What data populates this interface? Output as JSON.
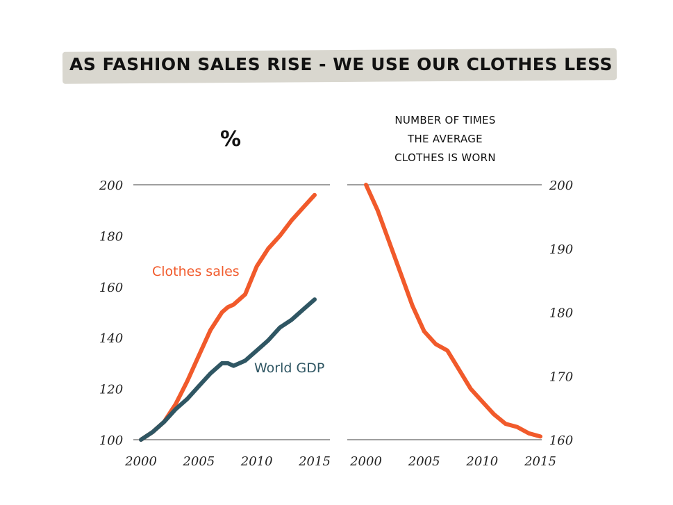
{
  "title": "AS FASHION SALES RISE - WE USE OUR CLOTHES LESS",
  "colors": {
    "clothes_sales": "#f15a2b",
    "world_gdp": "#2f5663",
    "title_band": "#d9d7cf",
    "grid": "#666666"
  },
  "chart_data": [
    {
      "type": "line",
      "unit_label": "%",
      "x_ticks": [
        "2000",
        "2005",
        "2010",
        "2015"
      ],
      "y_ticks": [
        "100",
        "120",
        "140",
        "160",
        "180",
        "200"
      ],
      "xlim": [
        2000,
        2015
      ],
      "ylim": [
        100,
        200
      ],
      "grid_lines": [
        200,
        100
      ],
      "series": [
        {
          "name": "Clothes sales",
          "color_key": "clothes_sales",
          "x": [
            2000,
            2001,
            2002,
            2003,
            2004,
            2005,
            2006,
            2007,
            2007.5,
            2008,
            2009,
            2010,
            2011,
            2012,
            2013,
            2014,
            2015
          ],
          "y": [
            100,
            103,
            107,
            114,
            123,
            133,
            143,
            150,
            152,
            153,
            157,
            168,
            175,
            180,
            186,
            191,
            196
          ]
        },
        {
          "name": "World GDP",
          "color_key": "world_gdp",
          "x": [
            2000,
            2001,
            2002,
            2003,
            2004,
            2005,
            2006,
            2007,
            2007.5,
            2008,
            2009,
            2010,
            2011,
            2012,
            2013,
            2014,
            2015
          ],
          "y": [
            100,
            103,
            107,
            112,
            116,
            121,
            126,
            130,
            130,
            129,
            131,
            135,
            139,
            144,
            147,
            151,
            155
          ]
        }
      ]
    },
    {
      "type": "line",
      "title_lines": [
        "NUMBER OF TIMES",
        "THE AVERAGE",
        "CLOTHES IS WORN"
      ],
      "x_ticks": [
        "2000",
        "2005",
        "2010",
        "2015"
      ],
      "y_ticks": [
        "160",
        "170",
        "180",
        "190",
        "200"
      ],
      "xlim": [
        2000,
        2015
      ],
      "ylim": [
        160,
        200
      ],
      "grid_lines": [
        200,
        160
      ],
      "series": [
        {
          "color_key": "clothes_sales",
          "x": [
            2000,
            2001,
            2002,
            2003,
            2004,
            2005,
            2006,
            2007,
            2008,
            2009,
            2010,
            2011,
            2012,
            2013,
            2014,
            2015
          ],
          "y": [
            200,
            196,
            191,
            186,
            181,
            177,
            175,
            174,
            171,
            168,
            166,
            164,
            162.5,
            162,
            161,
            160.5
          ]
        }
      ]
    }
  ]
}
